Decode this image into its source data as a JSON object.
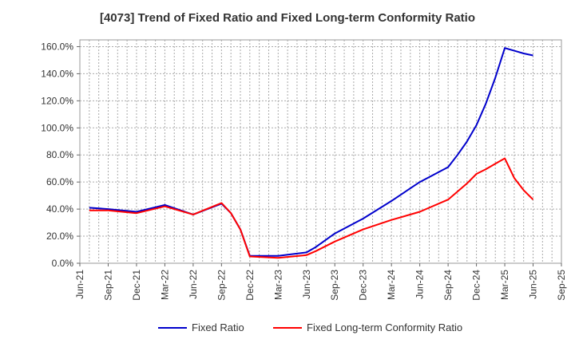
{
  "chart_data": {
    "type": "line",
    "title": "[4073]  Trend of Fixed Ratio and Fixed Long-term Conformity Ratio",
    "xlabel": "",
    "ylabel": "",
    "ylim": [
      0,
      165
    ],
    "y_ticks": [
      "0.0%",
      "20.0%",
      "40.0%",
      "60.0%",
      "80.0%",
      "100.0%",
      "120.0%",
      "140.0%",
      "160.0%"
    ],
    "x_ticks": [
      "Jun-21",
      "Sep-21",
      "Dec-21",
      "Mar-22",
      "Jun-22",
      "Sep-22",
      "Dec-22",
      "Mar-23",
      "Jun-23",
      "Sep-23",
      "Dec-23",
      "Mar-24",
      "Jun-24",
      "Sep-24",
      "Dec-24",
      "Mar-25",
      "Jun-25",
      "Sep-25"
    ],
    "grid": true,
    "legend_position": "bottom",
    "x": [
      "Jul-21",
      "Sep-21",
      "Dec-21",
      "Mar-22",
      "Jun-22",
      "Sep-22",
      "Oct-22",
      "Nov-22",
      "Dec-22",
      "Mar-23",
      "Jun-23",
      "Jul-23",
      "Sep-23",
      "Dec-23",
      "Mar-24",
      "Jun-24",
      "Sep-24",
      "Oct-24",
      "Nov-24",
      "Dec-24",
      "Jan-25",
      "Feb-25",
      "Mar-25",
      "Apr-25",
      "May-25",
      "Jun-25"
    ],
    "series": [
      {
        "name": "Fixed Ratio",
        "color": "#0000cc",
        "values": [
          41,
          40,
          38,
          43,
          36,
          44,
          37,
          25,
          5.5,
          5.5,
          8,
          12,
          22,
          33,
          46,
          60,
          71,
          80,
          90,
          102,
          118,
          137,
          159,
          157,
          155,
          153.5
        ]
      },
      {
        "name": "Fixed Long-term Conformity Ratio",
        "color": "#ff0000",
        "values": [
          39,
          39,
          37,
          42,
          36,
          44.5,
          37,
          25,
          5,
          4,
          6,
          9,
          16,
          25,
          32,
          38,
          47,
          53,
          59,
          66,
          69.5,
          73.5,
          77.5,
          63,
          54,
          47
        ]
      }
    ]
  }
}
